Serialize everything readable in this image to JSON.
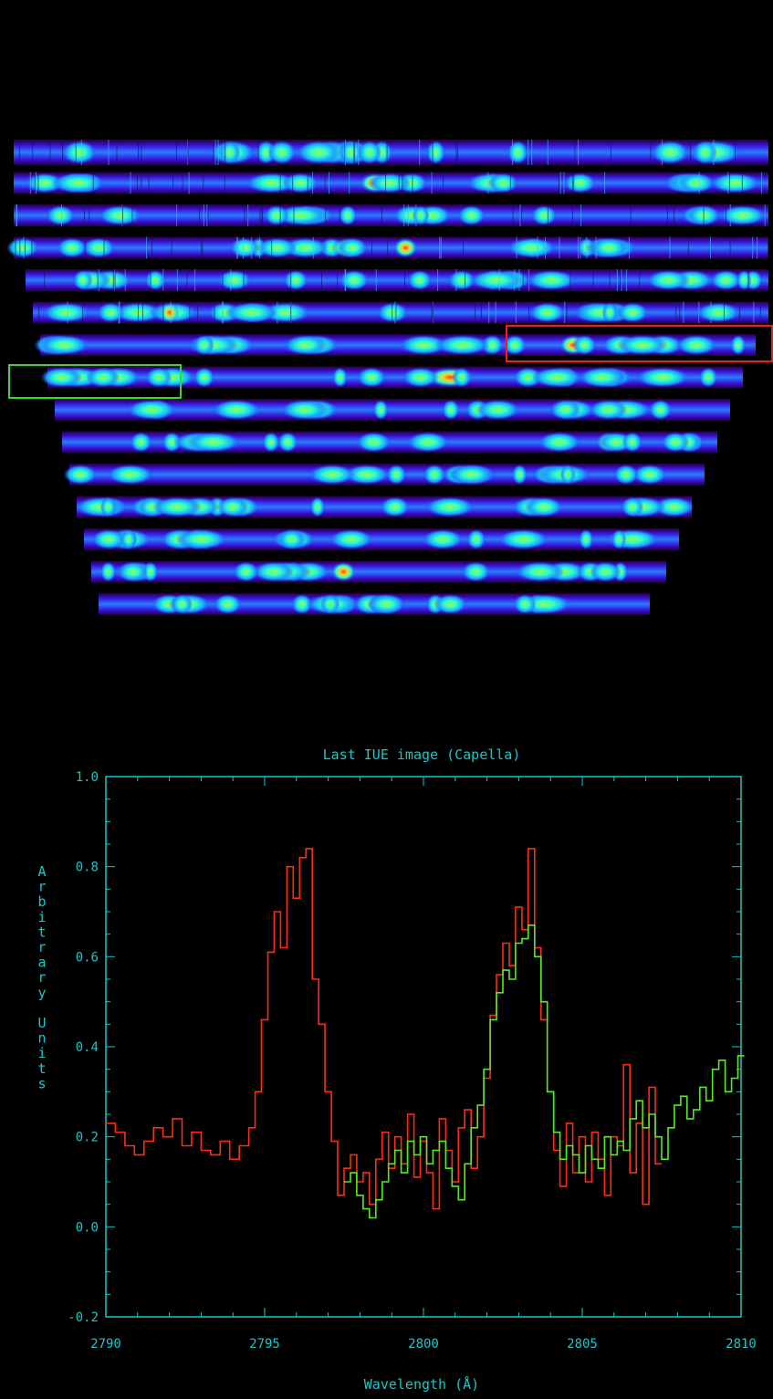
{
  "echelle_image": {
    "n_orders": 15,
    "box_colors": {
      "red": "#ff1a1a",
      "green": "#33dd22"
    }
  },
  "colors": {
    "axis": "#19c8c8",
    "series_red": "#ff2a1a",
    "series_green": "#55ee1a",
    "background": "#000000"
  },
  "chart_data": {
    "type": "line",
    "title": "Last IUE image (Capella)",
    "xlabel": "Wavelength (Å)",
    "ylabel": "Arbitrary Units",
    "xlim": [
      2790,
      2810
    ],
    "ylim": [
      -0.2,
      1.0
    ],
    "xticks": [
      "2790",
      "2795",
      "2800",
      "2805",
      "2810"
    ],
    "yticks": [
      "-0.2",
      "0.0",
      "0.2",
      "0.4",
      "0.6",
      "0.8",
      "1.0"
    ],
    "series": [
      {
        "color": "#ff2a1a",
        "x": [
          2790.0,
          2790.3,
          2790.6,
          2790.9,
          2791.2,
          2791.5,
          2791.8,
          2792.1,
          2792.4,
          2792.7,
          2793.0,
          2793.3,
          2793.6,
          2793.9,
          2794.2,
          2794.5,
          2794.7,
          2794.9,
          2795.1,
          2795.3,
          2795.5,
          2795.7,
          2795.9,
          2796.1,
          2796.3,
          2796.5,
          2796.7,
          2796.9,
          2797.1,
          2797.3,
          2797.5,
          2797.7,
          2797.9,
          2798.1,
          2798.3,
          2798.5,
          2798.7,
          2798.9,
          2799.1,
          2799.3,
          2799.5,
          2799.7,
          2799.9,
          2800.1,
          2800.3,
          2800.5,
          2800.7,
          2800.9,
          2801.1,
          2801.3,
          2801.5,
          2801.7,
          2801.9,
          2802.1,
          2802.3,
          2802.5,
          2802.7,
          2802.9,
          2803.1,
          2803.3,
          2803.5,
          2803.7,
          2803.9,
          2804.1,
          2804.3,
          2804.5,
          2804.7,
          2804.9,
          2805.1,
          2805.3,
          2805.5,
          2805.7,
          2805.9,
          2806.1,
          2806.3,
          2806.5,
          2806.7,
          2806.9,
          2807.1,
          2807.3
        ],
        "y": [
          0.23,
          0.21,
          0.18,
          0.16,
          0.19,
          0.22,
          0.2,
          0.24,
          0.18,
          0.21,
          0.17,
          0.16,
          0.19,
          0.15,
          0.18,
          0.22,
          0.3,
          0.46,
          0.61,
          0.7,
          0.62,
          0.8,
          0.73,
          0.82,
          0.84,
          0.55,
          0.45,
          0.3,
          0.19,
          0.07,
          0.13,
          0.16,
          0.1,
          0.12,
          0.05,
          0.15,
          0.21,
          0.13,
          0.2,
          0.14,
          0.25,
          0.11,
          0.19,
          0.12,
          0.04,
          0.24,
          0.17,
          0.1,
          0.22,
          0.26,
          0.13,
          0.2,
          0.33,
          0.47,
          0.56,
          0.63,
          0.58,
          0.71,
          0.66,
          0.84,
          0.62,
          0.46,
          0.3,
          0.17,
          0.09,
          0.23,
          0.12,
          0.2,
          0.1,
          0.21,
          0.15,
          0.07,
          0.2,
          0.18,
          0.36,
          0.12,
          0.23,
          0.05,
          0.31,
          0.14
        ]
      },
      {
        "color": "#55ee1a",
        "x": [
          2797.5,
          2797.7,
          2797.9,
          2798.1,
          2798.3,
          2798.5,
          2798.7,
          2798.9,
          2799.1,
          2799.3,
          2799.5,
          2799.7,
          2799.9,
          2800.1,
          2800.3,
          2800.5,
          2800.7,
          2800.9,
          2801.1,
          2801.3,
          2801.5,
          2801.7,
          2801.9,
          2802.1,
          2802.3,
          2802.5,
          2802.7,
          2802.9,
          2803.1,
          2803.3,
          2803.5,
          2803.7,
          2803.9,
          2804.1,
          2804.3,
          2804.5,
          2804.7,
          2804.9,
          2805.1,
          2805.3,
          2805.5,
          2805.7,
          2805.9,
          2806.1,
          2806.3,
          2806.5,
          2806.7,
          2806.9,
          2807.1,
          2807.3,
          2807.5,
          2807.7,
          2807.9,
          2808.1,
          2808.3,
          2808.5,
          2808.7,
          2808.9,
          2809.1,
          2809.3,
          2809.5,
          2809.7,
          2809.9
        ],
        "y": [
          0.1,
          0.12,
          0.07,
          0.04,
          0.02,
          0.06,
          0.1,
          0.14,
          0.17,
          0.12,
          0.19,
          0.16,
          0.2,
          0.14,
          0.17,
          0.19,
          0.13,
          0.09,
          0.06,
          0.14,
          0.22,
          0.27,
          0.35,
          0.46,
          0.52,
          0.57,
          0.55,
          0.63,
          0.64,
          0.67,
          0.6,
          0.5,
          0.3,
          0.21,
          0.15,
          0.18,
          0.16,
          0.12,
          0.18,
          0.15,
          0.13,
          0.2,
          0.16,
          0.19,
          0.17,
          0.24,
          0.28,
          0.22,
          0.25,
          0.2,
          0.15,
          0.22,
          0.27,
          0.29,
          0.24,
          0.26,
          0.31,
          0.28,
          0.35,
          0.37,
          0.3,
          0.33,
          0.38
        ]
      }
    ]
  }
}
